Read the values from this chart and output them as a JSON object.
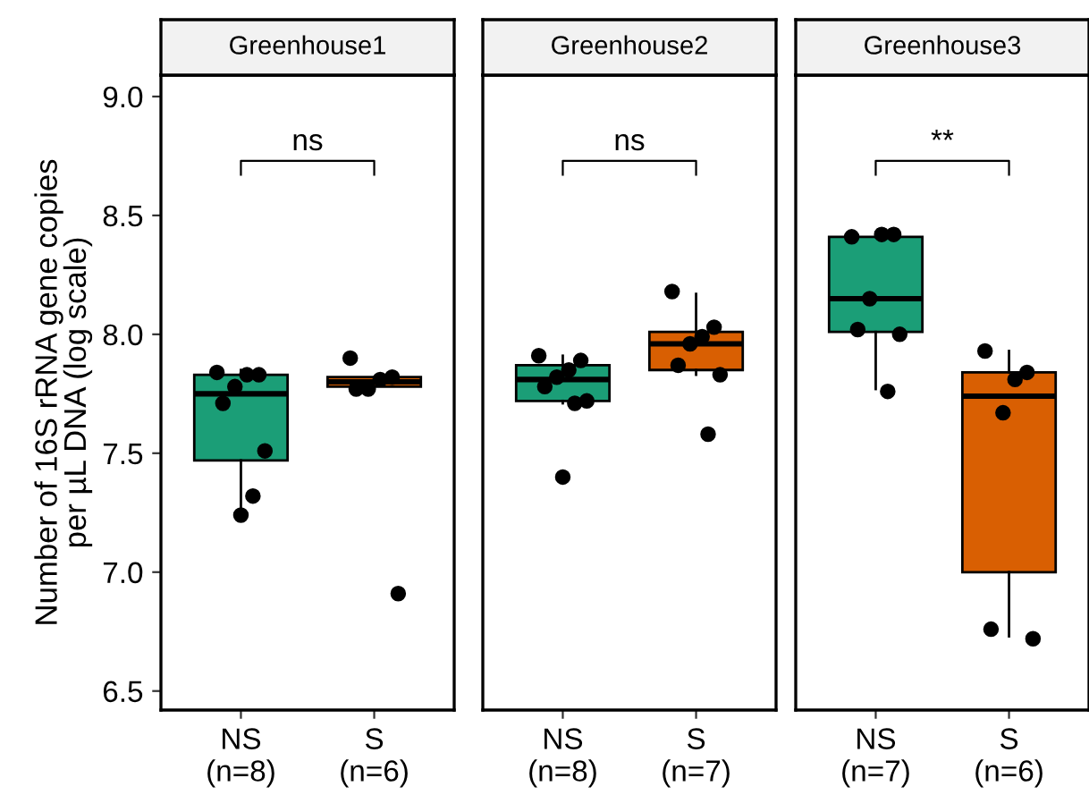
{
  "chart_data": [
    {
      "type": "box",
      "title": "Greenhouse1",
      "ylabel": "Number of 16S rRNA gene copies\nper µL DNA (log scale)",
      "categories": [
        "NS\n(n=8)",
        "S\n(n=6)"
      ],
      "colors": [
        "#1b9e77",
        "#d95f02"
      ],
      "ylim": [
        6.42,
        9.09
      ],
      "yticks": [
        {
          "value": 6.5,
          "label": "6.5"
        },
        {
          "value": 7.0,
          "label": "7.0"
        },
        {
          "value": 7.5,
          "label": "7.5"
        },
        {
          "value": 8.0,
          "label": "8.0"
        },
        {
          "value": 8.5,
          "label": "8.5"
        },
        {
          "value": 9.0,
          "label": "9.0"
        }
      ],
      "boxes": [
        {
          "low": 7.24,
          "q1": 7.47,
          "median": 7.75,
          "q3": 7.83,
          "high": 7.85
        },
        {
          "low": 7.77,
          "q1": 7.78,
          "median": 7.8,
          "q3": 7.82,
          "high": 7.82
        }
      ],
      "series": [
        {
          "type": "scatter",
          "color": "#000000",
          "x": [
            "NS\n(n=8)",
            "NS\n(n=8)",
            "NS\n(n=8)",
            "NS\n(n=8)",
            "NS\n(n=8)",
            "NS\n(n=8)",
            "NS\n(n=8)",
            "NS\n(n=8)",
            "S\n(n=6)",
            "S\n(n=6)",
            "S\n(n=6)",
            "S\n(n=6)",
            "S\n(n=6)",
            "S\n(n=6)"
          ],
          "values": [
            7.84,
            7.83,
            7.83,
            7.78,
            7.71,
            7.51,
            7.32,
            7.24,
            7.9,
            7.82,
            7.81,
            7.77,
            7.77,
            6.91
          ]
        }
      ],
      "annotations": [
        "ns"
      ]
    },
    {
      "type": "box",
      "title": "Greenhouse2",
      "categories": [
        "NS\n(n=8)",
        "S\n(n=7)"
      ],
      "colors": [
        "#1b9e77",
        "#d95f02"
      ],
      "ylim": [
        6.42,
        9.09
      ],
      "yticks": [
        {
          "value": 6.5,
          "label": null
        },
        {
          "value": 7.0,
          "label": null
        },
        {
          "value": 7.5,
          "label": null
        },
        {
          "value": 8.0,
          "label": null
        },
        {
          "value": 8.5,
          "label": null
        },
        {
          "value": 9.0,
          "label": null
        }
      ],
      "tick_labels": "x",
      "boxes": [
        {
          "low": 7.71,
          "q1": 7.72,
          "median": 7.81,
          "q3": 7.87,
          "high": 7.91
        },
        {
          "low": 7.83,
          "q1": 7.85,
          "median": 7.96,
          "q3": 8.01,
          "high": 8.17
        }
      ],
      "series": [
        {
          "type": "scatter",
          "color": "#000000",
          "x": [
            "NS\n(n=8)",
            "NS\n(n=8)",
            "NS\n(n=8)",
            "NS\n(n=8)",
            "NS\n(n=8)",
            "NS\n(n=8)",
            "NS\n(n=8)",
            "NS\n(n=8)",
            "S\n(n=7)",
            "S\n(n=7)",
            "S\n(n=7)",
            "S\n(n=7)",
            "S\n(n=7)",
            "S\n(n=7)",
            "S\n(n=7)"
          ],
          "values": [
            7.91,
            7.89,
            7.85,
            7.82,
            7.78,
            7.72,
            7.71,
            7.4,
            8.18,
            8.03,
            7.99,
            7.96,
            7.87,
            7.83,
            7.58
          ]
        }
      ],
      "annotations": [
        "ns"
      ]
    },
    {
      "type": "box",
      "title": "Greenhouse3",
      "categories": [
        "NS\n(n=7)",
        "S\n(n=6)"
      ],
      "colors": [
        "#1b9e77",
        "#d95f02"
      ],
      "ylim": [
        6.42,
        9.09
      ],
      "yticks": [
        {
          "value": 6.5,
          "label": null
        },
        {
          "value": 7.0,
          "label": null
        },
        {
          "value": 7.5,
          "label": null
        },
        {
          "value": 8.0,
          "label": null
        },
        {
          "value": 8.5,
          "label": null
        },
        {
          "value": 9.0,
          "label": null
        }
      ],
      "tick_labels": "x",
      "boxes": [
        {
          "low": 7.77,
          "q1": 8.01,
          "median": 8.15,
          "q3": 8.41,
          "high": 8.43
        },
        {
          "low": 6.73,
          "q1": 7.0,
          "median": 7.74,
          "q3": 7.84,
          "high": 7.93
        }
      ],
      "series": [
        {
          "type": "scatter",
          "color": "#000000",
          "x": [
            "NS\n(n=7)",
            "NS\n(n=7)",
            "NS\n(n=7)",
            "NS\n(n=7)",
            "NS\n(n=7)",
            "NS\n(n=7)",
            "NS\n(n=7)",
            "S\n(n=6)",
            "S\n(n=6)",
            "S\n(n=6)",
            "S\n(n=6)",
            "S\n(n=6)",
            "S\n(n=6)"
          ],
          "values": [
            8.41,
            8.42,
            8.42,
            8.15,
            8.02,
            8.0,
            7.76,
            7.93,
            7.84,
            7.81,
            7.67,
            6.76,
            6.72
          ]
        }
      ],
      "annotations": [
        "**"
      ]
    }
  ]
}
